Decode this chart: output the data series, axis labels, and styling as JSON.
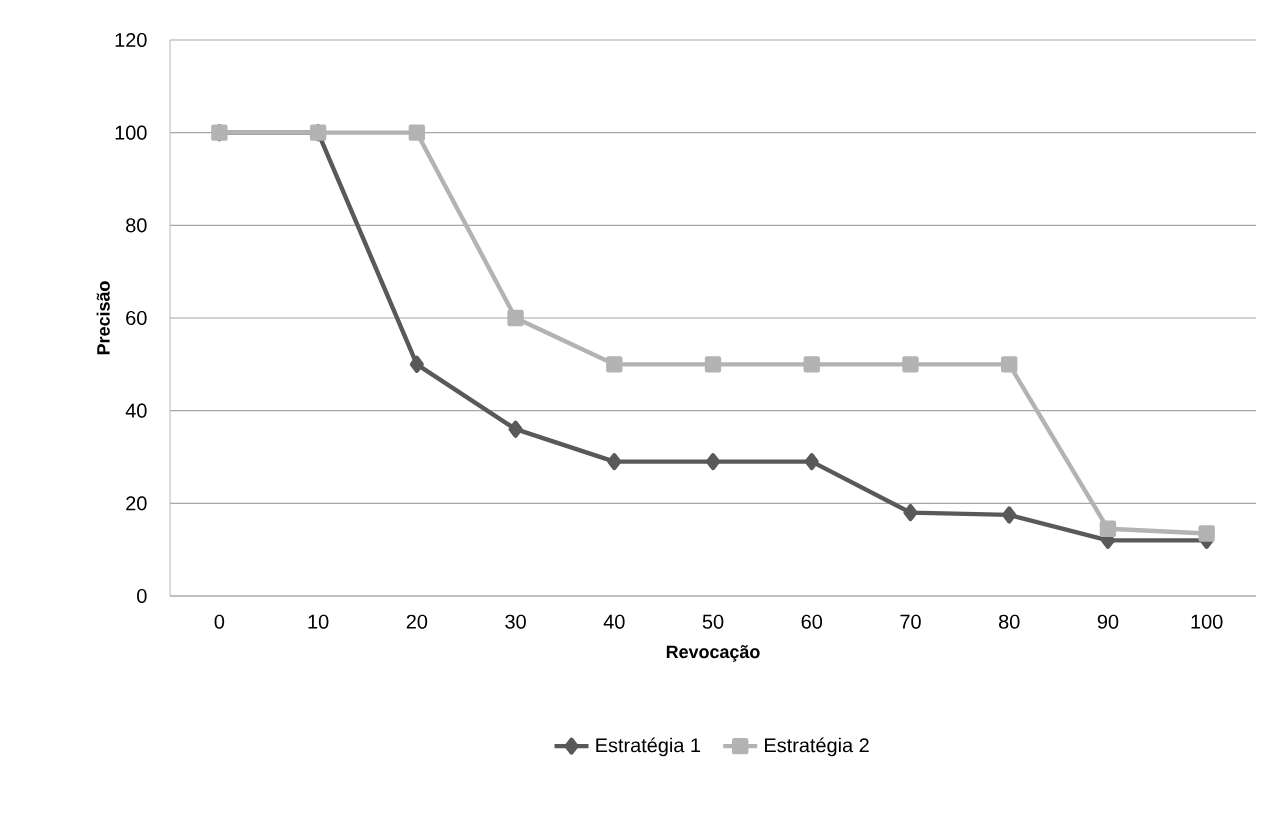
{
  "chart_data": {
    "type": "line",
    "xlabel": "Revocação",
    "ylabel": "Precisão",
    "categories": [
      "0",
      "10",
      "20",
      "30",
      "40",
      "50",
      "60",
      "70",
      "80",
      "90",
      "100"
    ],
    "series": [
      {
        "name": "Estratégia 1",
        "color": "#595959",
        "marker": "diamond",
        "values": [
          100,
          100,
          50,
          36,
          29,
          29,
          29,
          18,
          17.5,
          12,
          12
        ]
      },
      {
        "name": "Estratégia 2",
        "color": "#b3b3b3",
        "marker": "square",
        "values": [
          100,
          100,
          100,
          60,
          50,
          50,
          50,
          50,
          50,
          14.5,
          13.5
        ]
      }
    ],
    "ylim": [
      0,
      120
    ],
    "yticks": [
      0,
      20,
      40,
      60,
      80,
      100,
      120
    ],
    "grid": "y",
    "legend": "bottom",
    "line_style": "solid"
  }
}
